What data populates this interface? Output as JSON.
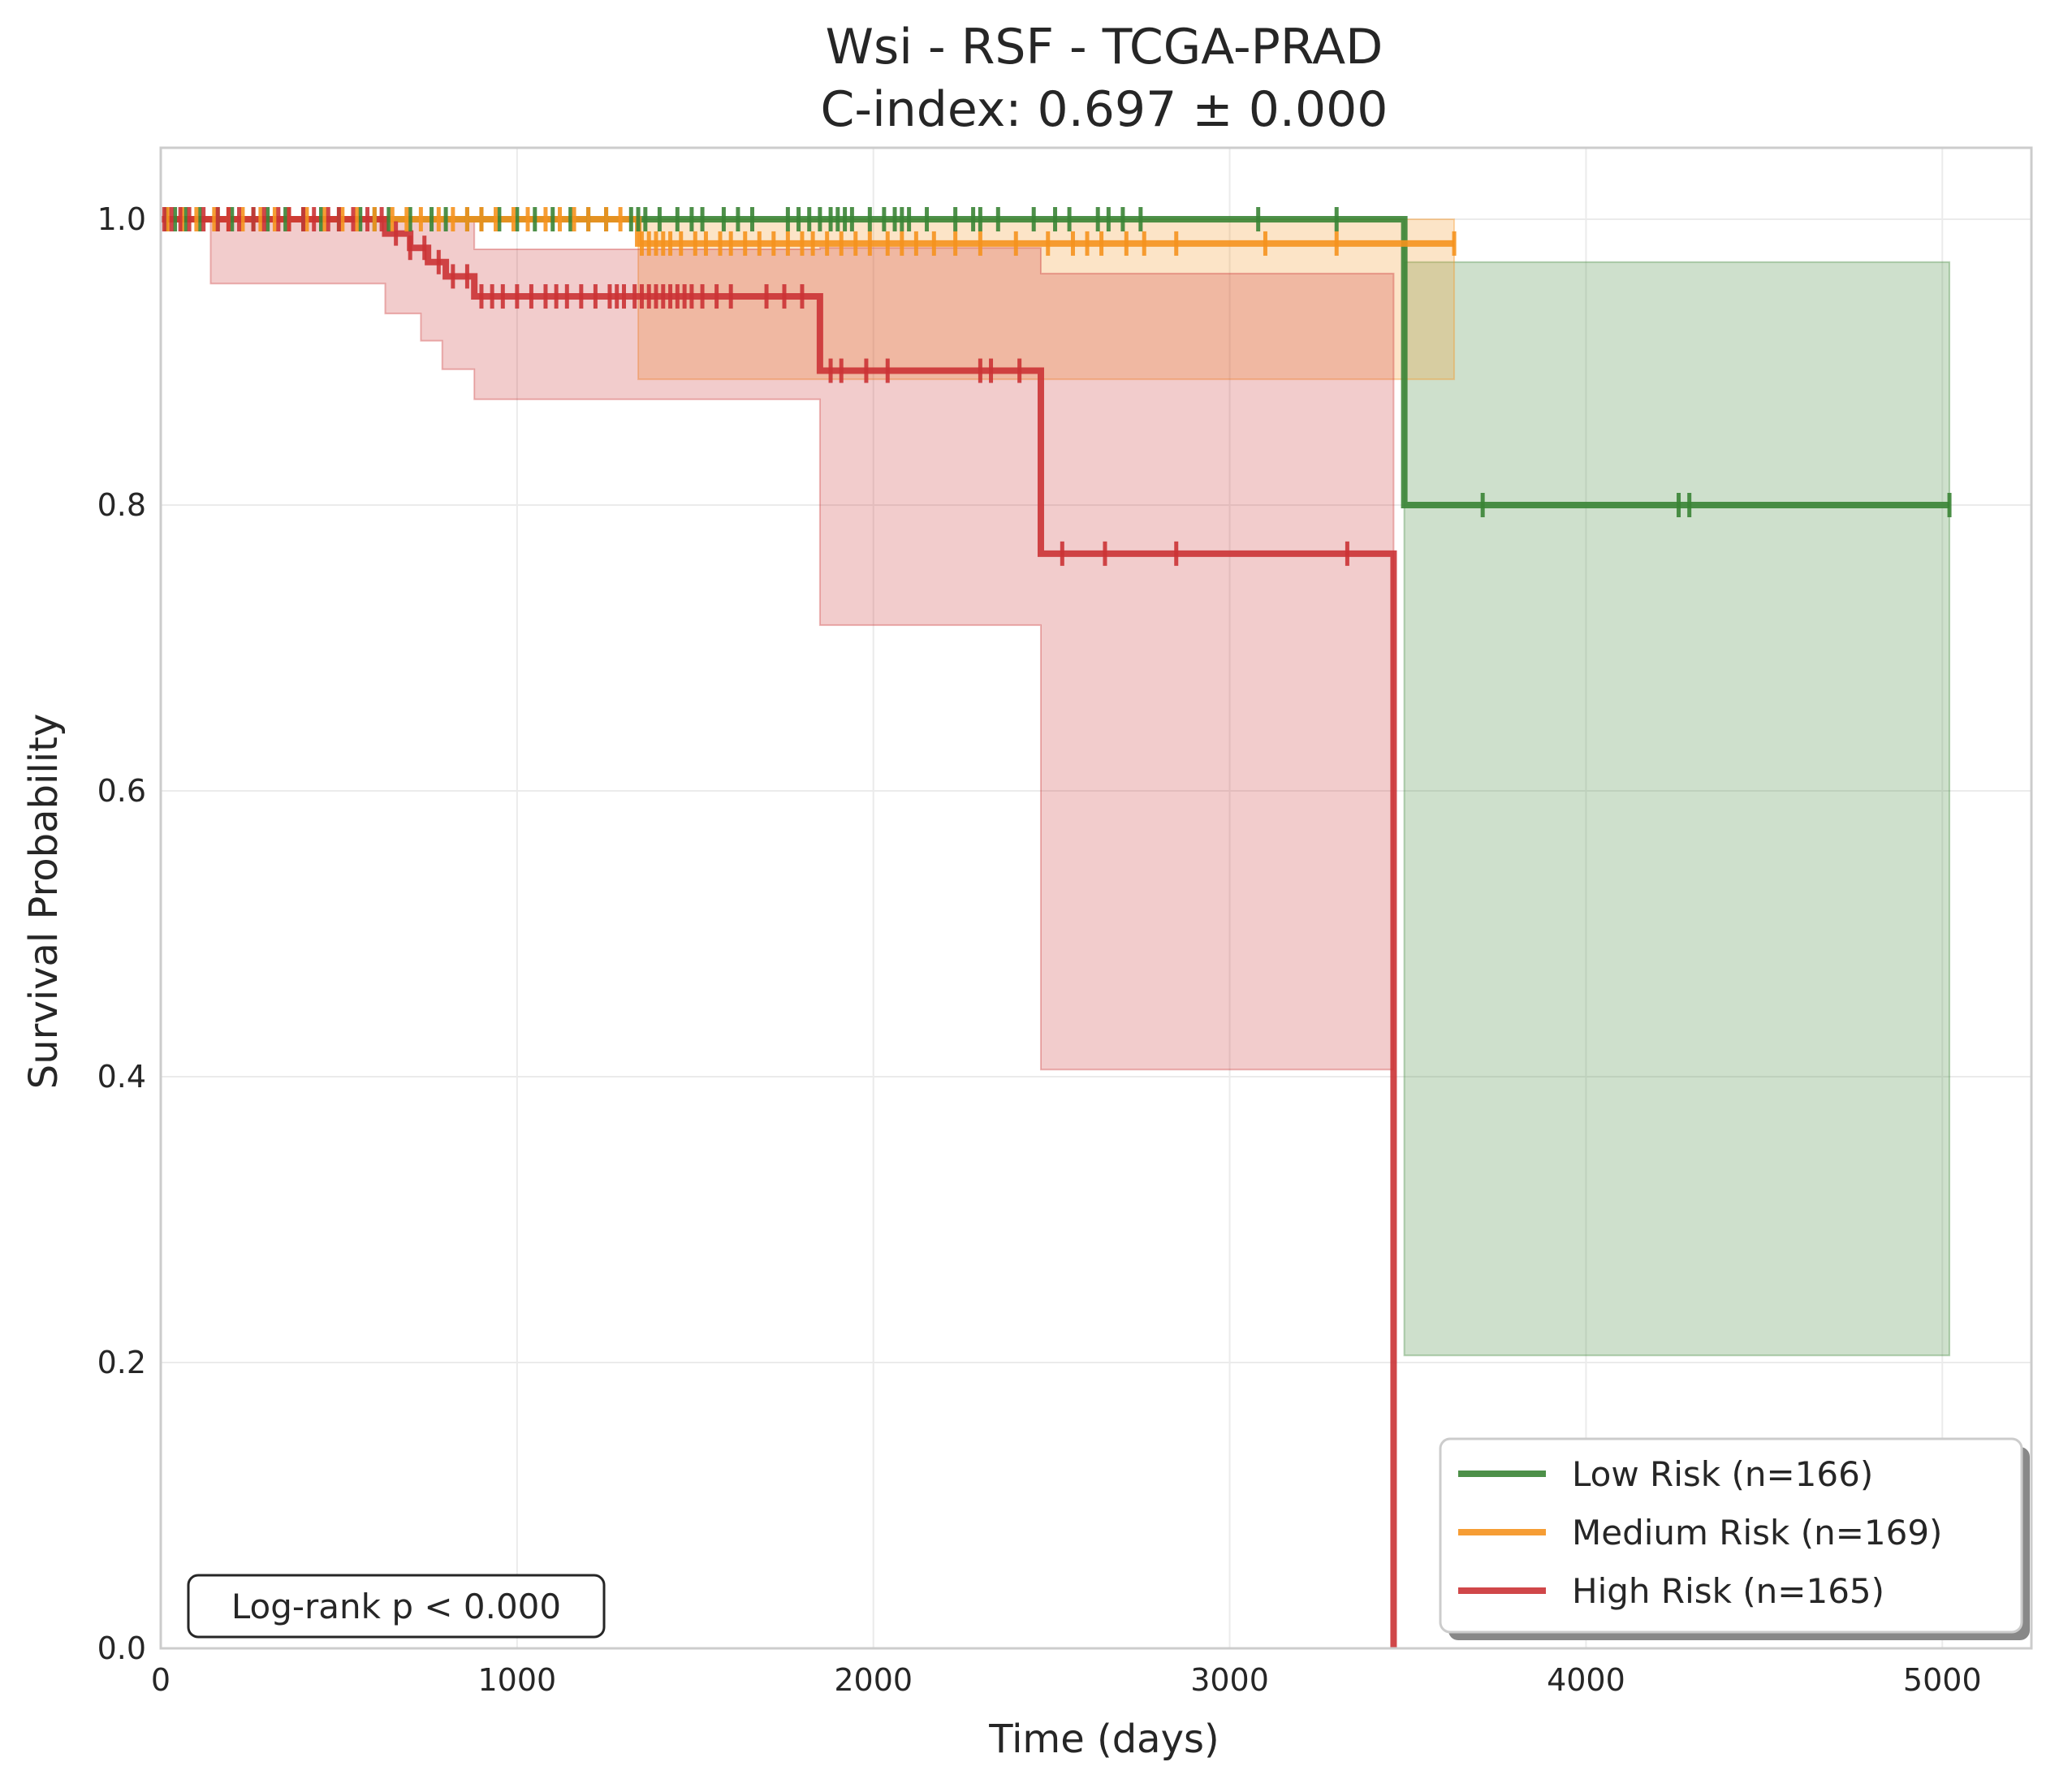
{
  "chart_data": {
    "type": "line",
    "title": "Wsi - RSF - TCGA-PRAD",
    "subtitle": "C-index: 0.697 ± 0.000",
    "xlabel": "Time (days)",
    "ylabel": "Survival Probability",
    "xlim": [
      0,
      5250
    ],
    "ylim": [
      0,
      1.05
    ],
    "xticks": [
      0,
      1000,
      2000,
      3000,
      4000,
      5000
    ],
    "xtick_labels": [
      "0",
      "1000",
      "2000",
      "3000",
      "4000",
      "5000"
    ],
    "yticks": [
      0.0,
      0.2,
      0.4,
      0.6,
      0.8,
      1.0
    ],
    "ytick_labels": [
      "0.0",
      "0.2",
      "0.4",
      "0.6",
      "0.8",
      "1.0"
    ],
    "grid": true,
    "legend_position": "bottom-right",
    "annotation": "Log-rank p < 0.000",
    "series": [
      {
        "name": "Low Risk (n=166)",
        "color": "#3a8435",
        "steps": [
          [
            0,
            1.0
          ],
          [
            3490,
            1.0
          ],
          [
            3490,
            0.8
          ],
          [
            5020,
            0.8
          ]
        ],
        "ci_band": [
          [
            0,
            1.0,
            1.0
          ],
          [
            3490,
            0.205,
            0.97
          ],
          [
            5020,
            0.205,
            0.97
          ]
        ],
        "censor_times": [
          15,
          40,
          70,
          110,
          160,
          200,
          260,
          300,
          350,
          400,
          450,
          500,
          560,
          600,
          640,
          700,
          760,
          800,
          860,
          900,
          950,
          1000,
          1050,
          1100,
          1150,
          1200,
          1250,
          1320,
          1340,
          1360,
          1400,
          1450,
          1490,
          1520,
          1580,
          1620,
          1660,
          1760,
          1790,
          1820,
          1850,
          1880,
          1900,
          1920,
          1940,
          1990,
          2030,
          2060,
          2080,
          2100,
          2150,
          2230,
          2280,
          2300,
          2350,
          2450,
          2510,
          2550,
          2630,
          2660,
          2700,
          2750,
          3080,
          3300,
          3710,
          4260,
          4290,
          5020
        ]
      },
      {
        "name": "Medium Risk (n=169)",
        "color": "#f5921e",
        "steps": [
          [
            0,
            1.0
          ],
          [
            1340,
            1.0
          ],
          [
            1340,
            0.983
          ],
          [
            3630,
            0.983
          ]
        ],
        "ci_band": [
          [
            0,
            1.0,
            1.0
          ],
          [
            1340,
            0.888,
            1.0
          ],
          [
            3630,
            0.888,
            1.0
          ]
        ],
        "censor_times": [
          20,
          60,
          100,
          150,
          190,
          230,
          280,
          320,
          360,
          410,
          460,
          510,
          550,
          600,
          650,
          690,
          730,
          780,
          820,
          860,
          900,
          940,
          990,
          1030,
          1080,
          1120,
          1160,
          1200,
          1250,
          1290,
          1350,
          1370,
          1390,
          1410,
          1430,
          1460,
          1500,
          1530,
          1570,
          1600,
          1640,
          1680,
          1720,
          1760,
          1800,
          1830,
          1870,
          1910,
          1950,
          1990,
          2040,
          2080,
          2120,
          2170,
          2230,
          2300,
          2400,
          2490,
          2560,
          2600,
          2640,
          2710,
          2760,
          2850,
          3100,
          3300,
          3630
        ]
      },
      {
        "name": "High Risk (n=165)",
        "color": "#cb3335",
        "steps": [
          [
            0,
            1.0
          ],
          [
            630,
            1.0
          ],
          [
            630,
            0.99
          ],
          [
            700,
            0.99
          ],
          [
            700,
            0.98
          ],
          [
            750,
            0.98
          ],
          [
            750,
            0.97
          ],
          [
            800,
            0.97
          ],
          [
            800,
            0.96
          ],
          [
            880,
            0.96
          ],
          [
            880,
            0.946
          ],
          [
            1850,
            0.946
          ],
          [
            1850,
            0.894
          ],
          [
            2470,
            0.894
          ],
          [
            2470,
            0.766
          ],
          [
            3460,
            0.766
          ],
          [
            3460,
            0.0
          ]
        ],
        "ci_band": [
          [
            0,
            1.0,
            1.0
          ],
          [
            140,
            0.955,
            1.0
          ],
          [
            630,
            0.934,
            1.0
          ],
          [
            730,
            0.915,
            1.0
          ],
          [
            790,
            0.895,
            1.0
          ],
          [
            880,
            0.874,
            0.979
          ],
          [
            1850,
            0.716,
            0.98
          ],
          [
            2470,
            0.405,
            0.962
          ],
          [
            3460,
            0.405,
            0.926
          ]
        ],
        "censor_times": [
          10,
          30,
          55,
          80,
          120,
          160,
          190,
          220,
          260,
          290,
          330,
          360,
          400,
          430,
          470,
          500,
          540,
          580,
          620,
          660,
          700,
          740,
          780,
          820,
          860,
          900,
          930,
          960,
          1000,
          1040,
          1080,
          1110,
          1140,
          1180,
          1220,
          1260,
          1280,
          1300,
          1330,
          1350,
          1370,
          1390,
          1410,
          1430,
          1450,
          1470,
          1490,
          1520,
          1560,
          1600,
          1700,
          1750,
          1800,
          1880,
          1910,
          1980,
          2040,
          2300,
          2330,
          2410,
          2530,
          2650,
          2850,
          3330
        ]
      }
    ]
  }
}
